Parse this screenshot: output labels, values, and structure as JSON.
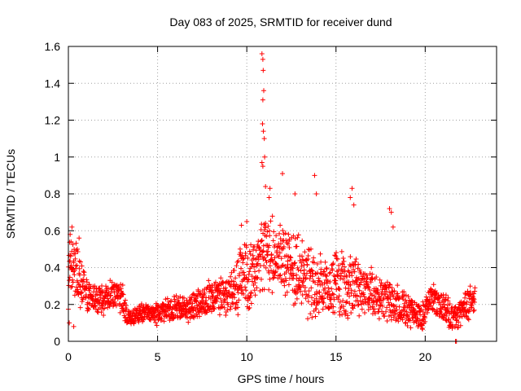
{
  "chart_data": {
    "type": "scatter",
    "title": "Day 083 of 2025, SRMTID for receiver dund",
    "xlabel": "GPS time / hours",
    "ylabel": "SRMTID / TECUs",
    "xlim": [
      0,
      24
    ],
    "ylim": [
      0,
      1.6
    ],
    "xticks": [
      0,
      5,
      10,
      15,
      20
    ],
    "xtick_labels": [
      "0",
      "5",
      "10",
      "15",
      "20"
    ],
    "yticks": [
      0,
      0.2,
      0.4,
      0.6,
      0.8,
      1.0,
      1.2,
      1.4,
      1.6
    ],
    "ytick_labels": [
      "0",
      "0.2",
      "0.4",
      "0.6",
      "0.8",
      "1",
      "1.2",
      "1.4",
      "1.6"
    ],
    "grid": true,
    "marker": "plus",
    "color": "#ff0000",
    "series": [
      {
        "name": "SRMTID",
        "profile": [
          [
            0.0,
            0.36,
            0.3
          ],
          [
            0.3,
            0.4,
            0.28
          ],
          [
            0.7,
            0.32,
            0.24
          ],
          [
            1.2,
            0.24,
            0.14
          ],
          [
            2.0,
            0.22,
            0.14
          ],
          [
            2.6,
            0.26,
            0.14
          ],
          [
            3.0,
            0.24,
            0.16
          ],
          [
            3.3,
            0.12,
            0.08
          ],
          [
            4.0,
            0.15,
            0.08
          ],
          [
            5.0,
            0.15,
            0.1
          ],
          [
            6.0,
            0.18,
            0.12
          ],
          [
            7.0,
            0.18,
            0.14
          ],
          [
            8.0,
            0.24,
            0.16
          ],
          [
            9.0,
            0.24,
            0.18
          ],
          [
            9.6,
            0.32,
            0.3
          ],
          [
            10.5,
            0.4,
            0.32
          ],
          [
            11.0,
            0.5,
            0.36
          ],
          [
            12.0,
            0.44,
            0.36
          ],
          [
            13.0,
            0.36,
            0.34
          ],
          [
            14.0,
            0.28,
            0.3
          ],
          [
            15.0,
            0.3,
            0.3
          ],
          [
            16.0,
            0.3,
            0.28
          ],
          [
            17.0,
            0.26,
            0.24
          ],
          [
            18.0,
            0.22,
            0.2
          ],
          [
            19.0,
            0.18,
            0.16
          ],
          [
            19.8,
            0.12,
            0.12
          ],
          [
            20.3,
            0.24,
            0.14
          ],
          [
            21.0,
            0.18,
            0.16
          ],
          [
            21.7,
            0.12,
            0.12
          ],
          [
            22.2,
            0.18,
            0.14
          ],
          [
            22.8,
            0.24,
            0.16
          ]
        ],
        "outliers": [
          [
            0.1,
            0.58
          ],
          [
            0.2,
            0.62
          ],
          [
            0.15,
            0.54
          ],
          [
            0.05,
            0.1
          ],
          [
            0.3,
            0.08
          ],
          [
            0.6,
            0.56
          ],
          [
            0.5,
            0.5
          ],
          [
            10.85,
            1.56
          ],
          [
            10.9,
            1.53
          ],
          [
            10.92,
            1.47
          ],
          [
            10.95,
            1.36
          ],
          [
            10.9,
            1.31
          ],
          [
            10.88,
            1.18
          ],
          [
            10.93,
            1.14
          ],
          [
            10.98,
            1.1
          ],
          [
            10.85,
            0.97
          ],
          [
            10.9,
            0.95
          ],
          [
            11.0,
            1.0
          ],
          [
            11.05,
            0.84
          ],
          [
            11.3,
            0.83
          ],
          [
            11.25,
            0.78
          ],
          [
            12.0,
            0.91
          ],
          [
            13.8,
            0.9
          ],
          [
            13.9,
            0.8
          ],
          [
            15.9,
            0.83
          ],
          [
            15.8,
            0.78
          ],
          [
            16.0,
            0.74
          ],
          [
            18.0,
            0.72
          ],
          [
            18.1,
            0.7
          ],
          [
            18.2,
            0.62
          ],
          [
            10.0,
            0.65
          ],
          [
            9.7,
            0.63
          ],
          [
            12.7,
            0.8
          ],
          [
            21.75,
            0.0
          ],
          [
            21.7,
            0.0
          ]
        ]
      }
    ]
  }
}
